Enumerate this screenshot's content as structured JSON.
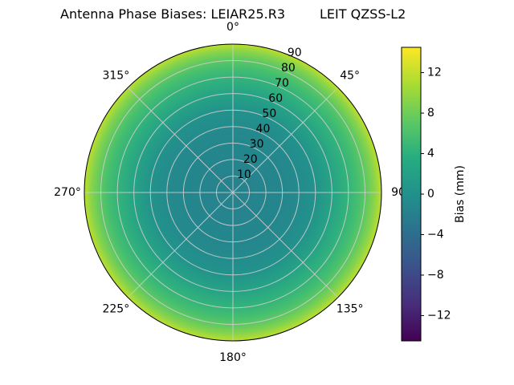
{
  "title": {
    "left": "Antenna Phase Biases: LEIAR25.R3",
    "right": "LEIT QZSS-L2"
  },
  "chart_data": {
    "type": "heatmap",
    "projection": "polar",
    "title": "Antenna Phase Biases: LEIAR25.R3      LEIT QZSS-L2",
    "theta_zero_location": "N",
    "theta_direction": "clockwise",
    "theta_ticks_deg": [
      0,
      45,
      90,
      135,
      180,
      225,
      270,
      315
    ],
    "theta_tick_labels": [
      "0°",
      "45°",
      "90",
      "135°",
      "180°",
      "225°",
      "270°",
      "315°"
    ],
    "r_ticks": [
      10,
      20,
      30,
      40,
      50,
      60,
      70,
      80,
      90
    ],
    "r_tick_labels": [
      "10",
      "20",
      "30",
      "40",
      "50",
      "60",
      "70",
      "80",
      "90"
    ],
    "r_max": 90,
    "grid": true,
    "colormap": "viridis",
    "colorbar": {
      "label": "Bias (mm)",
      "ticks": [
        12,
        8,
        4,
        0,
        -4,
        -8,
        -12
      ],
      "tick_labels": [
        "12",
        "8",
        "4",
        "0",
        "−4",
        "−8",
        "−12"
      ],
      "vmin": -14.5,
      "vmax": 14.5
    },
    "radial_profile": {
      "description": "Approximate azimuth-averaged bias versus radial coordinate (center 0 to rim 90)",
      "r_deg": [
        0,
        10,
        20,
        30,
        40,
        50,
        60,
        70,
        80,
        90
      ],
      "bias_mm": [
        0.0,
        0.2,
        0.7,
        1.5,
        2.6,
        4.0,
        5.7,
        7.6,
        9.8,
        12.3
      ]
    },
    "colors": {
      "disk_center": "#26818d",
      "disk_edge": "#b9de28",
      "gridline": "#cccccc",
      "outline": "#000000"
    }
  }
}
